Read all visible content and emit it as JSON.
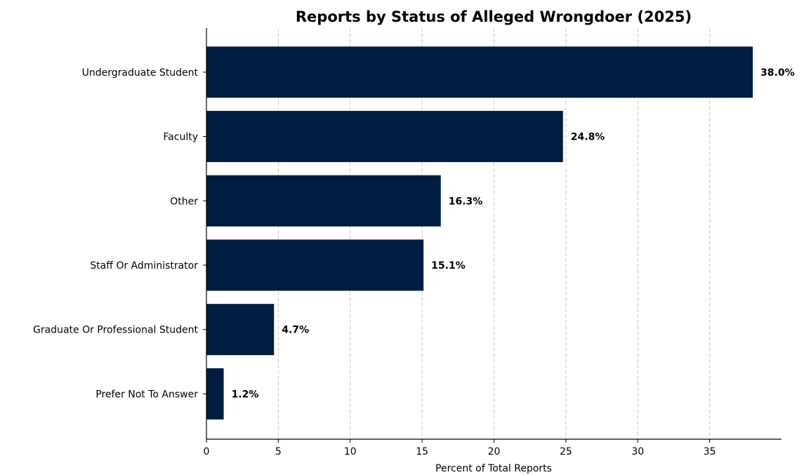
{
  "chart_data": {
    "type": "bar",
    "orientation": "horizontal",
    "title": "Reports by Status of Alleged Wrongdoer (2025)",
    "xlabel": "Percent of Total Reports",
    "ylabel": "",
    "categories": [
      "Undergraduate Student",
      "Faculty",
      "Other",
      "Staff Or Administrator",
      "Graduate Or Professional Student",
      "Prefer Not To Answer"
    ],
    "values": [
      38.0,
      24.8,
      16.3,
      15.1,
      4.7,
      1.2
    ],
    "value_labels": [
      "38.0%",
      "24.8%",
      "16.3%",
      "15.1%",
      "4.7%",
      "1.2%"
    ],
    "xticks": [
      0,
      5,
      10,
      15,
      20,
      25,
      30,
      35
    ],
    "xlim": [
      0,
      40
    ],
    "grid": "x-dashed",
    "bar_color": "#001c40",
    "legend": "none"
  }
}
